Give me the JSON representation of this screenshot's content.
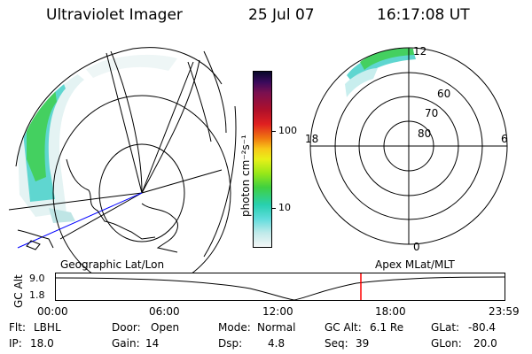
{
  "header": {
    "instrument": "Ultraviolet Imager",
    "date": "25 Jul 07",
    "time": "16:17:08 UT"
  },
  "colorbar": {
    "unit_label": "photon cm⁻²s⁻¹",
    "ticks": [
      "100",
      "10"
    ]
  },
  "polar_plot": {
    "mlt_labels": {
      "top": "12",
      "left": "18",
      "right": "6",
      "bottom": "0"
    },
    "lat_labels": [
      "60",
      "70",
      "80"
    ]
  },
  "timeline": {
    "left_label": "Geographic Lat/Lon",
    "right_label": "Apex MLat/MLT",
    "axis_label": "GC Alt",
    "y_ticks": [
      "9.0",
      "1.8"
    ],
    "x_ticks": [
      "00:00",
      "06:00",
      "12:00",
      "18:00",
      "23:59"
    ],
    "current_time_marker": "16:17"
  },
  "info": {
    "row1": [
      {
        "label": "Flt:",
        "value": "LBHL"
      },
      {
        "label": "Door:",
        "value": "Open"
      },
      {
        "label": "Mode:",
        "value": "Normal"
      },
      {
        "label": "GC Alt:",
        "value": "6.1 Re"
      },
      {
        "label": "GLat:",
        "value": "-80.4"
      }
    ],
    "row2": [
      {
        "label": "IP:",
        "value": "18.0"
      },
      {
        "label": "Gain:",
        "value": "14"
      },
      {
        "label": "Dsp:",
        "value": "4.8"
      },
      {
        "label": "Seq:",
        "value": "39"
      },
      {
        "label": "GLon:",
        "value": "20.0"
      }
    ]
  },
  "colors": {
    "aurora_green": "#3cd23c",
    "aurora_cyan": "#3cd2c8",
    "marker_red": "#ff0000",
    "coast_blue": "#0000ff"
  }
}
